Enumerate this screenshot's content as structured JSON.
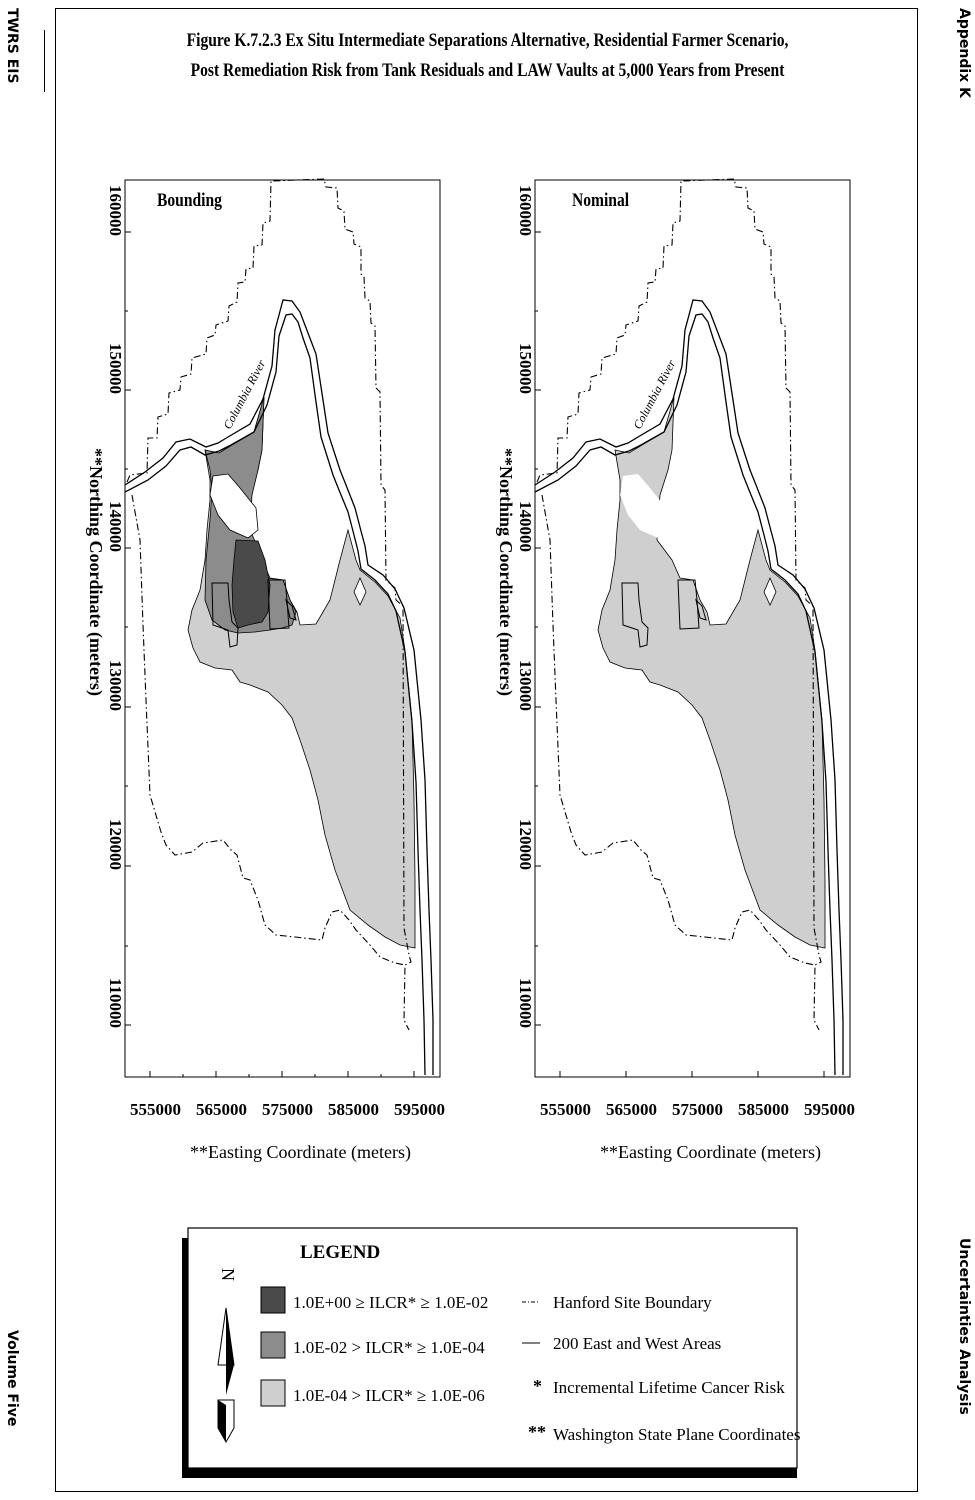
{
  "page": {
    "header_left": "TWRS EIS",
    "header_right": "Appendix K",
    "footer_left": "Volume Five",
    "footer_right": "Uncertainties Analysis"
  },
  "figure": {
    "title_line1": "Figure K.7.2.3  Ex Situ Intermediate Separations Alternative, Residential Farmer Scenario,",
    "title_line2": "Post Remediation Risk from Tank Residuals and LAW Vaults at 5,000 Years from Present"
  },
  "maps": {
    "left_label": "Bounding",
    "right_label": "Nominal",
    "river_label": "Columbia River",
    "y_axis_title": "**Northing Coordinate (meters)",
    "x_axis_title": "**Easting Coordinate (meters)",
    "y_ticks": [
      "110000",
      "120000",
      "130000",
      "140000",
      "150000",
      "160000"
    ],
    "x_ticks": [
      "555000",
      "565000",
      "575000",
      "585000",
      "595000"
    ]
  },
  "legend": {
    "title": "LEGEND",
    "north": "N",
    "items": [
      {
        "label": "1.0E+00 ≥ ILCR* ≥ 1.0E-02",
        "color": "#4a4a4a"
      },
      {
        "label": "1.0E-02 > ILCR* ≥ 1.0E-04",
        "color": "#8c8c8c"
      },
      {
        "label": "1.0E-04 > ILCR* ≥ 1.0E-06",
        "color": "#cfcfcf"
      }
    ],
    "notes": [
      "Hanford Site Boundary",
      "200 East and West Areas",
      "Incremental Lifetime Cancer Risk",
      "Washington State Plane Coordinates"
    ],
    "note_symbols": [
      "*",
      "**"
    ]
  }
}
